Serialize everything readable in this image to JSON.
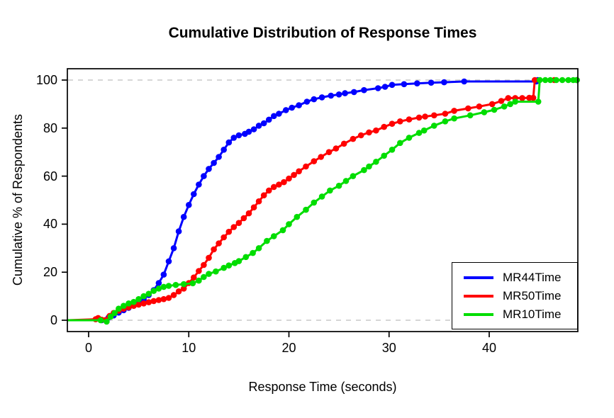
{
  "figure": {
    "title": "Cumulative Distribution of Response Times"
  },
  "chart_data": {
    "type": "line",
    "title": "Cumulative Distribution of Response Times",
    "xlabel": "Response Time (seconds)",
    "ylabel": "Cumulative % of Respondents",
    "xlim": [
      -2.1,
      48.8
    ],
    "ylim": [
      -4.7,
      104.7
    ],
    "x_ticks": [
      0,
      10,
      20,
      30,
      40
    ],
    "y_ticks": [
      0,
      20,
      40,
      60,
      80,
      100
    ],
    "reference_lines_y": [
      0,
      100
    ],
    "grid_color": "#c8c8c8",
    "axis_color": "#000000",
    "legend_position": "bottom-right",
    "marker": "filled-circle",
    "series": [
      {
        "name": "MR44Time",
        "color": "#0000ff",
        "points": [
          [
            -2.05,
            0
          ],
          [
            1.3,
            0
          ],
          [
            2,
            1.2
          ],
          [
            2.5,
            2
          ],
          [
            3,
            3.2
          ],
          [
            3.5,
            4.2
          ],
          [
            4,
            5.2
          ],
          [
            4.5,
            6.2
          ],
          [
            5,
            7.5
          ],
          [
            5.5,
            8.8
          ],
          [
            6,
            10.5
          ],
          [
            6.5,
            12.5
          ],
          [
            7,
            15.5
          ],
          [
            7.5,
            19
          ],
          [
            8,
            24.5
          ],
          [
            8.5,
            30
          ],
          [
            9,
            37
          ],
          [
            9.5,
            43
          ],
          [
            10,
            48
          ],
          [
            10.5,
            52.5
          ],
          [
            11,
            56.5
          ],
          [
            11.5,
            60
          ],
          [
            12,
            63
          ],
          [
            12.5,
            65.5
          ],
          [
            13,
            68
          ],
          [
            13.5,
            71
          ],
          [
            14,
            74
          ],
          [
            14.5,
            76
          ],
          [
            15,
            77
          ],
          [
            15.6,
            77.6
          ],
          [
            16,
            78.5
          ],
          [
            16.5,
            79.5
          ],
          [
            17,
            81
          ],
          [
            17.5,
            82
          ],
          [
            18,
            83.5
          ],
          [
            18.5,
            85
          ],
          [
            19,
            86
          ],
          [
            19.7,
            87.5
          ],
          [
            20.3,
            88.5
          ],
          [
            21,
            89.5
          ],
          [
            21.8,
            91
          ],
          [
            22.5,
            92
          ],
          [
            23.3,
            92.8
          ],
          [
            24.2,
            93.5
          ],
          [
            25,
            94
          ],
          [
            25.6,
            94.5
          ],
          [
            26.5,
            95
          ],
          [
            27.5,
            95.8
          ],
          [
            28.9,
            96.6
          ],
          [
            29.6,
            97.2
          ],
          [
            30.3,
            98
          ],
          [
            31.5,
            98.3
          ],
          [
            32.8,
            98.6
          ],
          [
            34.2,
            98.9
          ],
          [
            35.5,
            99.1
          ],
          [
            37.5,
            99.4
          ],
          [
            44.7,
            99.4
          ],
          [
            44.85,
            100
          ],
          [
            48.75,
            100
          ]
        ]
      },
      {
        "name": "MR50Time",
        "color": "#ff0000",
        "points": [
          [
            -2.05,
            0
          ],
          [
            0.7,
            0.4
          ],
          [
            0.95,
            0.9
          ],
          [
            1.3,
            0.2
          ],
          [
            1.7,
            0.1
          ],
          [
            2.1,
            1.8
          ],
          [
            2.5,
            3
          ],
          [
            3,
            4
          ],
          [
            3.5,
            4.8
          ],
          [
            4,
            5.4
          ],
          [
            4.5,
            6
          ],
          [
            5,
            6.5
          ],
          [
            5.5,
            7
          ],
          [
            6,
            7.5
          ],
          [
            6.5,
            8
          ],
          [
            7,
            8.4
          ],
          [
            7.5,
            8.8
          ],
          [
            8,
            9.3
          ],
          [
            8.5,
            10.5
          ],
          [
            9,
            12
          ],
          [
            9.5,
            13.2
          ],
          [
            10,
            15.5
          ],
          [
            10.5,
            17.8
          ],
          [
            11,
            20.5
          ],
          [
            11.5,
            23
          ],
          [
            12,
            26
          ],
          [
            12.5,
            29.5
          ],
          [
            13,
            32
          ],
          [
            13.5,
            34.5
          ],
          [
            14,
            36.8
          ],
          [
            14.5,
            38.8
          ],
          [
            15,
            40.5
          ],
          [
            15.5,
            42.5
          ],
          [
            16,
            44.5
          ],
          [
            16.5,
            47
          ],
          [
            17,
            49.5
          ],
          [
            17.5,
            52
          ],
          [
            18,
            54
          ],
          [
            18.5,
            55.5
          ],
          [
            19,
            56.5
          ],
          [
            19.5,
            57.5
          ],
          [
            20,
            59
          ],
          [
            20.5,
            60.5
          ],
          [
            21,
            62
          ],
          [
            21.7,
            64
          ],
          [
            22.5,
            66.2
          ],
          [
            23.2,
            68
          ],
          [
            24,
            70
          ],
          [
            24.7,
            71.5
          ],
          [
            25.5,
            73.5
          ],
          [
            26.4,
            75.5
          ],
          [
            27.2,
            77
          ],
          [
            28,
            78.2
          ],
          [
            28.7,
            79
          ],
          [
            29.5,
            80.5
          ],
          [
            30.3,
            81.8
          ],
          [
            31.1,
            82.8
          ],
          [
            32,
            83.6
          ],
          [
            33,
            84.4
          ],
          [
            33.6,
            84.8
          ],
          [
            34.5,
            85.3
          ],
          [
            35.6,
            86
          ],
          [
            36.5,
            87.2
          ],
          [
            37.9,
            88.2
          ],
          [
            39,
            89
          ],
          [
            40.3,
            90
          ],
          [
            41.2,
            91.3
          ],
          [
            41.9,
            92.5
          ],
          [
            42.6,
            92.5
          ],
          [
            43.3,
            92.5
          ],
          [
            44,
            92.6
          ],
          [
            44.4,
            92.6
          ],
          [
            44.55,
            100
          ],
          [
            46.5,
            100
          ],
          [
            48.75,
            100
          ]
        ]
      },
      {
        "name": "MR10Time",
        "color": "#00dd00",
        "points": [
          [
            -2.05,
            0
          ],
          [
            1.2,
            0
          ],
          [
            1.8,
            -0.6
          ],
          [
            2.2,
            1.5
          ],
          [
            2.6,
            3
          ],
          [
            3,
            4.8
          ],
          [
            3.5,
            6
          ],
          [
            4,
            7
          ],
          [
            4.5,
            7.6
          ],
          [
            5,
            8.8
          ],
          [
            5.5,
            10
          ],
          [
            6,
            11
          ],
          [
            6.5,
            12.2
          ],
          [
            7,
            13.2
          ],
          [
            7.5,
            13.9
          ],
          [
            8,
            14.3
          ],
          [
            8.7,
            14.7
          ],
          [
            9.5,
            15
          ],
          [
            10.4,
            15.4
          ],
          [
            11,
            16.5
          ],
          [
            11.5,
            18
          ],
          [
            12,
            19.3
          ],
          [
            12.7,
            20.3
          ],
          [
            13.5,
            21.8
          ],
          [
            14,
            22.8
          ],
          [
            14.6,
            23.8
          ],
          [
            15,
            24.6
          ],
          [
            15.7,
            26.3
          ],
          [
            16.4,
            28
          ],
          [
            17,
            30
          ],
          [
            17.8,
            33
          ],
          [
            18.5,
            35
          ],
          [
            19.4,
            37.5
          ],
          [
            20,
            40
          ],
          [
            20.8,
            43
          ],
          [
            21.7,
            46
          ],
          [
            22.5,
            49
          ],
          [
            23.3,
            51.5
          ],
          [
            24.1,
            54
          ],
          [
            25,
            56
          ],
          [
            25.7,
            58
          ],
          [
            26.4,
            60
          ],
          [
            27.5,
            62.5
          ],
          [
            28,
            64
          ],
          [
            28.7,
            66
          ],
          [
            29.5,
            68.5
          ],
          [
            30.3,
            71
          ],
          [
            31.1,
            73.8
          ],
          [
            32,
            76
          ],
          [
            33,
            78
          ],
          [
            33.5,
            79
          ],
          [
            34.5,
            81
          ],
          [
            35.6,
            82.8
          ],
          [
            36.5,
            84
          ],
          [
            38.1,
            85.3
          ],
          [
            39.5,
            86.6
          ],
          [
            40.5,
            87.6
          ],
          [
            41.5,
            89
          ],
          [
            42.1,
            90
          ],
          [
            42.6,
            91
          ],
          [
            44.9,
            91
          ],
          [
            45.05,
            100
          ],
          [
            45.6,
            100
          ],
          [
            46.1,
            100
          ],
          [
            46.7,
            100
          ],
          [
            47.3,
            100
          ],
          [
            47.9,
            100
          ],
          [
            48.4,
            100
          ],
          [
            48.75,
            100
          ]
        ]
      }
    ],
    "legend_entries": [
      {
        "label": "MR44Time",
        "color": "#0000ff"
      },
      {
        "label": "MR50Time",
        "color": "#ff0000"
      },
      {
        "label": "MR10Time",
        "color": "#00dd00"
      }
    ]
  }
}
